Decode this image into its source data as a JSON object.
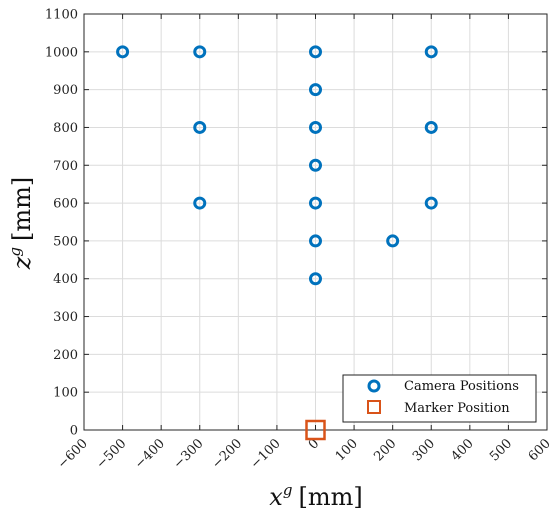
{
  "chart_data": {
    "type": "scatter",
    "title": "",
    "xlabel": {
      "base": "x",
      "sup": "g",
      "unit": "[mm]"
    },
    "ylabel": {
      "base": "z",
      "sup": "g",
      "unit": "[mm]"
    },
    "xlim": [
      -600,
      600
    ],
    "ylim": [
      0,
      1100
    ],
    "xticks": [
      -600,
      -500,
      -400,
      -300,
      -200,
      -100,
      0,
      100,
      200,
      300,
      400,
      500,
      600
    ],
    "yticks": [
      0,
      100,
      200,
      300,
      400,
      500,
      600,
      700,
      800,
      900,
      1000,
      1100
    ],
    "xtick_labels": [
      "−600",
      "−500",
      "−400",
      "−300",
      "−200",
      "−100",
      "0",
      "100",
      "200",
      "300",
      "400",
      "500",
      "600"
    ],
    "ytick_labels": [
      "0",
      "100",
      "200",
      "300",
      "400",
      "500",
      "600",
      "700",
      "800",
      "900",
      "1000",
      "1100"
    ],
    "grid": true,
    "legend_position": "bottom-right",
    "series": [
      {
        "name": "Camera Positions",
        "marker": "circle",
        "color": "#0072BD",
        "points": [
          [
            -500,
            1000
          ],
          [
            -300,
            1000
          ],
          [
            0,
            1000
          ],
          [
            300,
            1000
          ],
          [
            0,
            900
          ],
          [
            -300,
            800
          ],
          [
            0,
            800
          ],
          [
            300,
            800
          ],
          [
            0,
            700
          ],
          [
            -300,
            600
          ],
          [
            0,
            600
          ],
          [
            300,
            600
          ],
          [
            0,
            500
          ],
          [
            200,
            500
          ],
          [
            0,
            400
          ]
        ]
      },
      {
        "name": "Marker Position",
        "marker": "square",
        "color": "#D95319",
        "points": [
          [
            0,
            0
          ]
        ]
      }
    ]
  }
}
